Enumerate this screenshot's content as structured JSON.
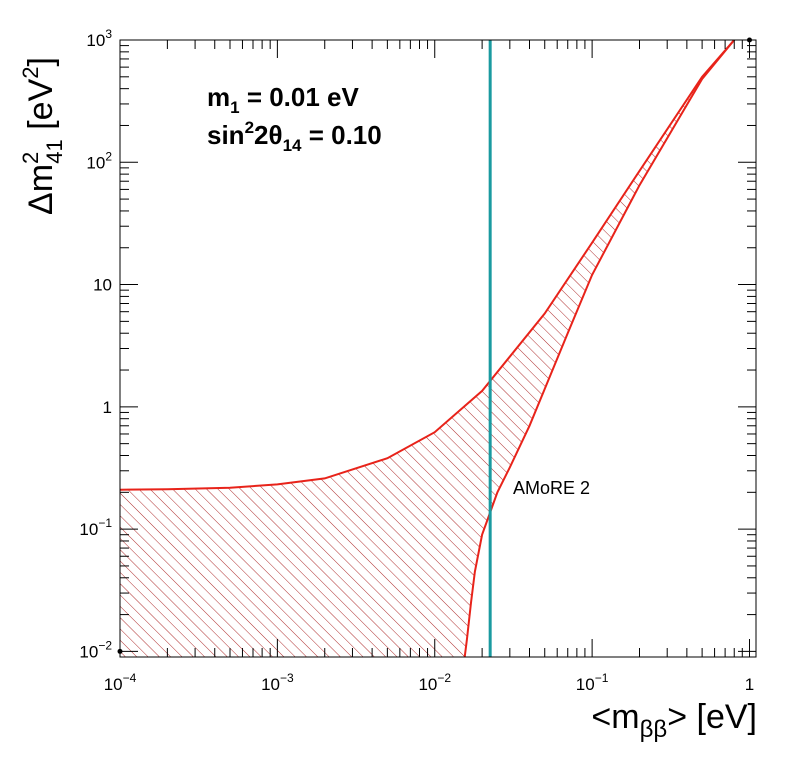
{
  "chart_data": {
    "type": "line",
    "x_axis": {
      "label_main": "<m",
      "label_sub": "ββ",
      "label_tail": "> [eV]",
      "scale": "log",
      "xlim": [
        0.0001,
        1.1
      ],
      "ticks": [
        {
          "value": 0.0001,
          "base": "10",
          "exp": "−4"
        },
        {
          "value": 0.001,
          "base": "10",
          "exp": "−3"
        },
        {
          "value": 0.01,
          "base": "10",
          "exp": "−2"
        },
        {
          "value": 0.1,
          "base": "10",
          "exp": "−1"
        },
        {
          "value": 1,
          "base": "1",
          "exp": ""
        }
      ]
    },
    "y_axis": {
      "label_prefix": "Δm",
      "label_sup": "2",
      "label_sub": "41",
      "label_mid": " [eV",
      "label_unit_sup": "2",
      "label_tail": "]",
      "scale": "log",
      "ylim": [
        0.009,
        1000
      ],
      "ticks": [
        {
          "value": 0.01,
          "base": "10",
          "exp": "−2"
        },
        {
          "value": 0.1,
          "base": "10",
          "exp": "−1"
        },
        {
          "value": 1,
          "base": "1",
          "exp": ""
        },
        {
          "value": 10,
          "base": "10",
          "exp": ""
        },
        {
          "value": 100,
          "base": "10",
          "exp": "2"
        },
        {
          "value": 1000,
          "base": "10",
          "exp": "3"
        }
      ]
    },
    "annotations": {
      "m1_main": "m",
      "m1_sub": "1",
      "m1_tail": " = 0.01 eV",
      "sin_main": "sin",
      "sin_sup": "2",
      "sin_mid": "2θ",
      "sin_sub": "14",
      "sin_tail": " = 0.10",
      "experiment_label": "AMoRE 2"
    },
    "series": [
      {
        "name": "upper boundary",
        "color": "#e8231a",
        "points": [
          [
            0.0001,
            0.21
          ],
          [
            0.0002,
            0.212
          ],
          [
            0.0005,
            0.218
          ],
          [
            0.001,
            0.232
          ],
          [
            0.002,
            0.26
          ],
          [
            0.005,
            0.38
          ],
          [
            0.01,
            0.62
          ],
          [
            0.02,
            1.35
          ],
          [
            0.05,
            5.8
          ],
          [
            0.1,
            22
          ],
          [
            0.2,
            85
          ],
          [
            0.5,
            500
          ],
          [
            0.8,
            1000
          ]
        ]
      },
      {
        "name": "lower boundary",
        "color": "#e8231a",
        "points": [
          [
            0.0155,
            0.009
          ],
          [
            0.016,
            0.0125
          ],
          [
            0.017,
            0.025
          ],
          [
            0.018,
            0.045
          ],
          [
            0.02,
            0.09
          ],
          [
            0.025,
            0.2
          ],
          [
            0.03,
            0.32
          ],
          [
            0.04,
            0.7
          ],
          [
            0.05,
            1.4
          ],
          [
            0.07,
            4
          ],
          [
            0.1,
            12
          ],
          [
            0.2,
            65
          ],
          [
            0.5,
            480
          ],
          [
            0.8,
            1000
          ]
        ]
      }
    ],
    "fill": {
      "between": [
        "upper boundary",
        "lower boundary"
      ],
      "pattern": "diagonal hatch",
      "color": "#a52a2a"
    },
    "vertical_line": {
      "x": 0.0225,
      "color": "#1a9aa0",
      "label": "AMoRE 2"
    },
    "markers": [
      [
        0.0001,
        0.01
      ],
      [
        1,
        1000
      ]
    ],
    "grid": false
  }
}
